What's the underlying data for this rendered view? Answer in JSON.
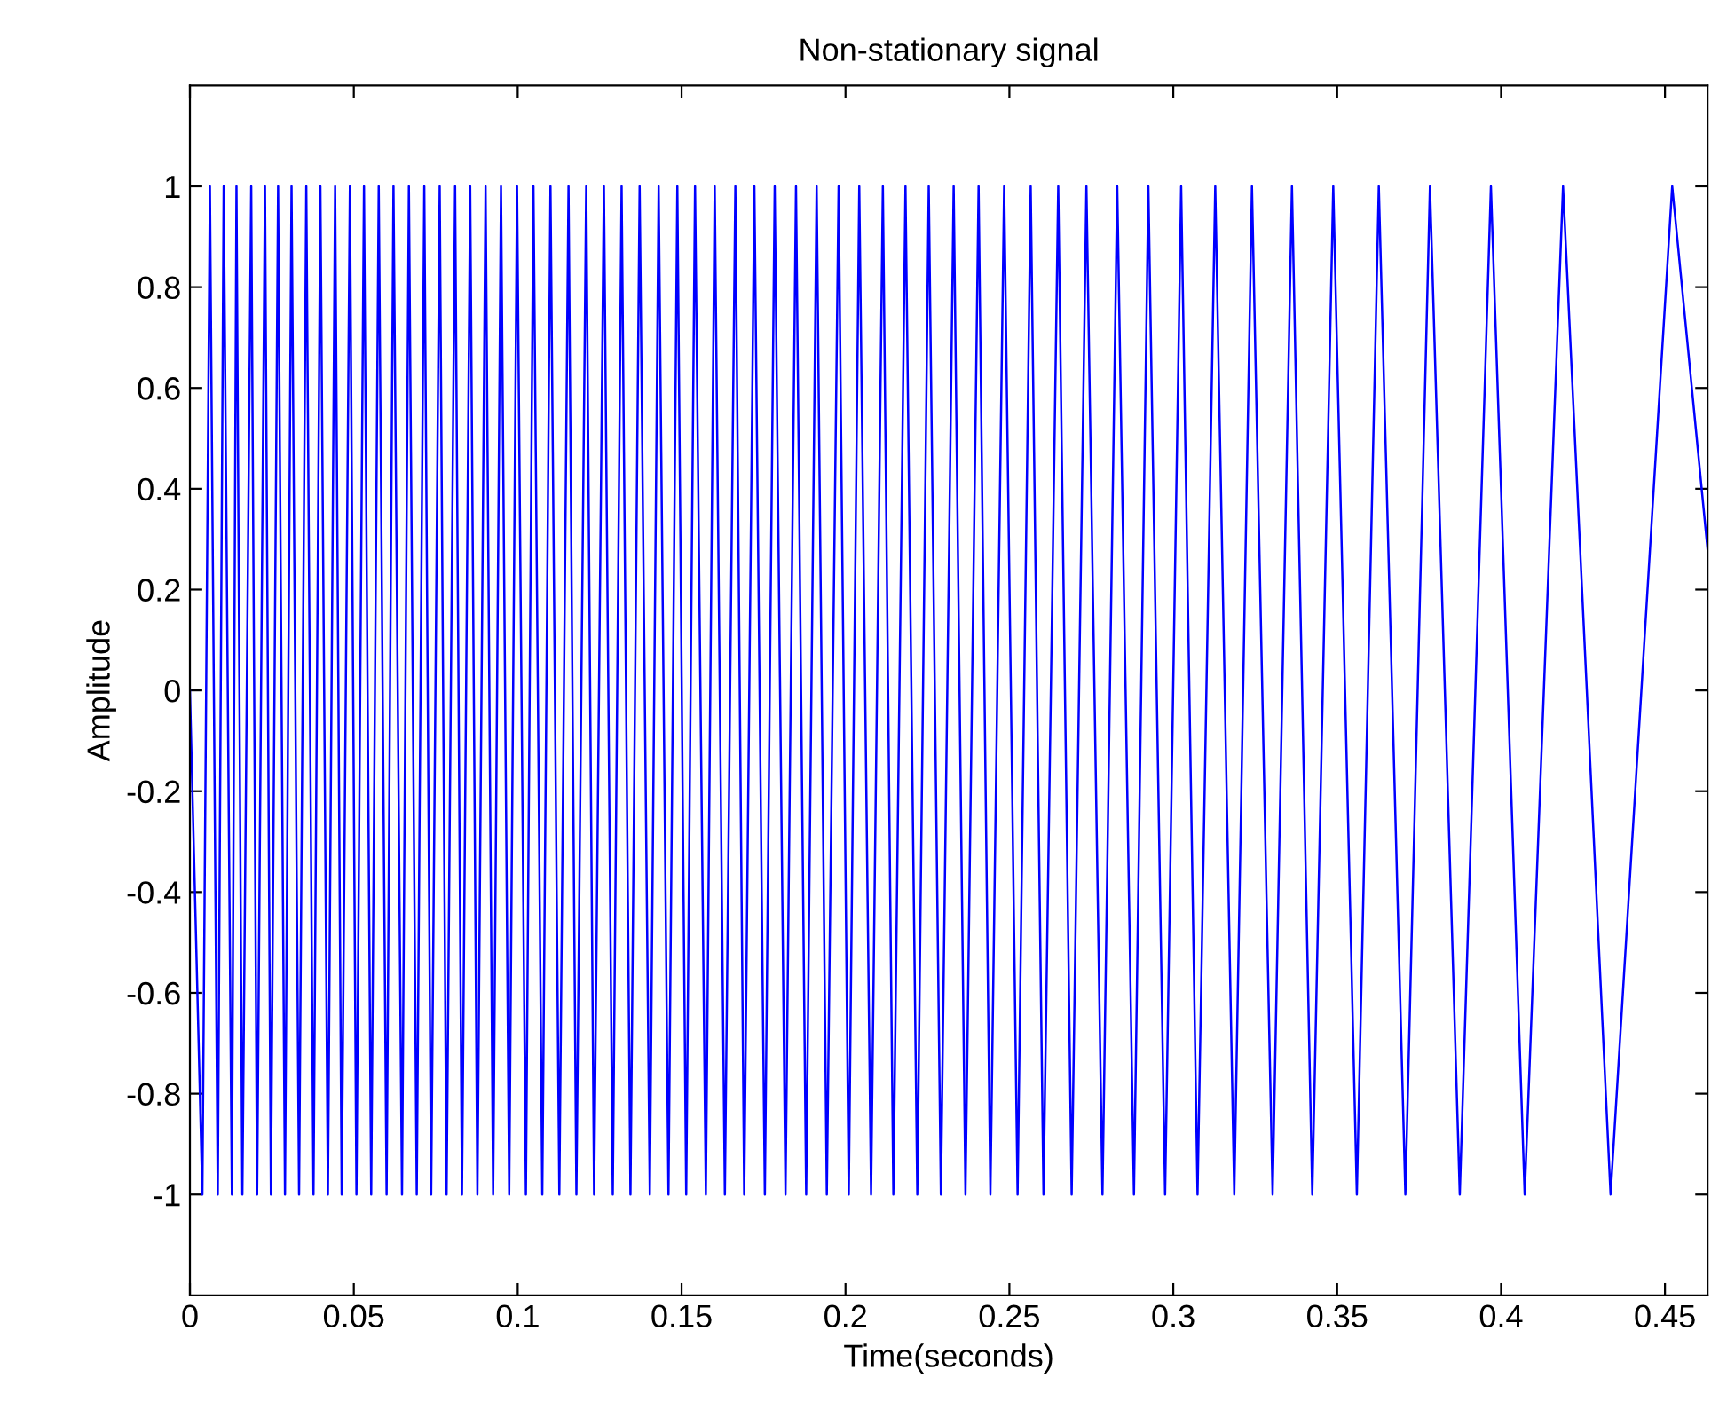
{
  "chart_data": {
    "type": "line",
    "title": "Non-stationary signal",
    "xlabel": "Time(seconds)",
    "ylabel": "Amplitude",
    "xlim": [
      0,
      0.463
    ],
    "ylim": [
      -1.2,
      1.2
    ],
    "xticks": [
      0,
      0.05,
      0.1,
      0.15,
      0.2,
      0.25,
      0.3,
      0.35,
      0.4,
      0.45
    ],
    "yticks": [
      -1,
      -0.8,
      -0.6,
      -0.4,
      -0.2,
      0,
      0.2,
      0.4,
      0.6,
      0.8,
      1
    ],
    "grid": false,
    "marker": "none",
    "line_style": "solid",
    "series": [
      {
        "color": "#0000ff",
        "x": [
          0,
          0.0038,
          0.0061,
          0.0085,
          0.0103,
          0.0128,
          0.0142,
          0.016,
          0.0187,
          0.0205,
          0.0229,
          0.0247,
          0.0269,
          0.029,
          0.031,
          0.0333,
          0.0355,
          0.0377,
          0.0398,
          0.0421,
          0.0443,
          0.0463,
          0.0488,
          0.0508,
          0.0531,
          0.0553,
          0.0576,
          0.06,
          0.0621,
          0.0647,
          0.0668,
          0.0692,
          0.0715,
          0.0736,
          0.0762,
          0.0783,
          0.0809,
          0.083,
          0.0855,
          0.0877,
          0.0902,
          0.0925,
          0.0949,
          0.0974,
          0.0998,
          0.1025,
          0.1048,
          0.1075,
          0.11,
          0.1127,
          0.1155,
          0.1179,
          0.1209,
          0.1233,
          0.1263,
          0.129,
          0.1317,
          0.1344,
          0.1372,
          0.1403,
          0.143,
          0.146,
          0.1487,
          0.1514,
          0.1541,
          0.1574,
          0.1601,
          0.1632,
          0.1664,
          0.1691,
          0.1722,
          0.1754,
          0.1784,
          0.1817,
          0.1849,
          0.188,
          0.1912,
          0.1943,
          0.1979,
          0.201,
          0.2042,
          0.2078,
          0.2114,
          0.2146,
          0.2183,
          0.2219,
          0.2254,
          0.2291,
          0.233,
          0.2366,
          0.2406,
          0.2442,
          0.2484,
          0.2525,
          0.2565,
          0.2604,
          0.2649,
          0.269,
          0.2735,
          0.2784,
          0.2829,
          0.288,
          0.2924,
          0.2975,
          0.3024,
          0.3074,
          0.3128,
          0.3186,
          0.324,
          0.3303,
          0.3362,
          0.3424,
          0.3488,
          0.356,
          0.3627,
          0.3708,
          0.3783,
          0.3874,
          0.3969,
          0.4072,
          0.4189,
          0.4334,
          0.4522,
          0.463
        ],
        "values": [
          0,
          -1,
          1,
          -1,
          1,
          -1,
          1,
          -1,
          1,
          -1,
          1,
          -1,
          1,
          -1,
          1,
          -1,
          1,
          -1,
          1,
          -1,
          1,
          -1,
          1,
          -1,
          1,
          -1,
          1,
          -1,
          1,
          -1,
          1,
          -1,
          1,
          -1,
          1,
          -1,
          1,
          -1,
          1,
          -1,
          1,
          -1,
          1,
          -1,
          1,
          -1,
          1,
          -1,
          1,
          -1,
          1,
          -1,
          1,
          -1,
          1,
          -1,
          1,
          -1,
          1,
          -1,
          1,
          -1,
          1,
          -1,
          1,
          -1,
          1,
          -1,
          1,
          -1,
          1,
          -1,
          1,
          -1,
          1,
          -1,
          1,
          -1,
          1,
          -1,
          1,
          -1,
          1,
          -1,
          1,
          -1,
          1,
          -1,
          1,
          -1,
          1,
          -1,
          1,
          -1,
          1,
          -1,
          1,
          -1,
          1,
          -1,
          1,
          -1,
          1,
          -1,
          1,
          -1,
          1,
          -1,
          1,
          -1,
          1,
          -1,
          1,
          -1,
          1,
          -1,
          1,
          -1,
          1,
          -1,
          1,
          -1,
          1,
          0.28
        ]
      }
    ]
  }
}
